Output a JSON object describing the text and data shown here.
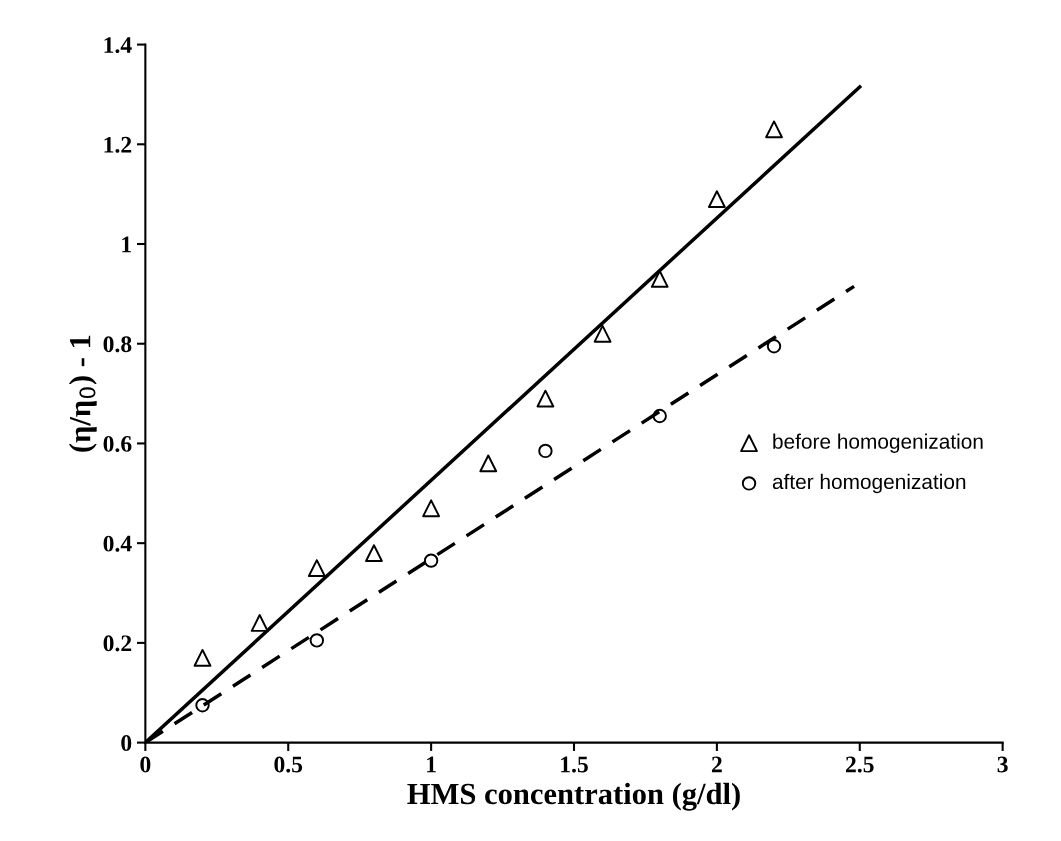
{
  "chart_data": {
    "type": "scatter",
    "xlabel": "HMS concentration (g/dl)",
    "ylabel": "(η/η$_{0}$) - 1",
    "xlim": [
      0,
      3
    ],
    "xticks": [
      0,
      0.5,
      1,
      1.5,
      2,
      2.5,
      3
    ],
    "ylim": [
      0,
      1.4
    ],
    "yticks": [
      0,
      0.2,
      0.4,
      0.6,
      0.8,
      1,
      1.2,
      1.4
    ],
    "grid": false,
    "legend": "right",
    "series": [
      {
        "name": "before homogenization",
        "marker": "triangle",
        "color": "#000000",
        "x": [
          0.2,
          0.4,
          0.6,
          0.8,
          1.0,
          1.2,
          1.4,
          1.6,
          1.8,
          2.0,
          2.2
        ],
        "values": [
          0.17,
          0.24,
          0.35,
          0.38,
          0.47,
          0.56,
          0.69,
          0.82,
          0.93,
          1.09,
          1.23
        ]
      },
      {
        "name": "after homogenization",
        "marker": "circle",
        "color": "#000000",
        "x": [
          0.2,
          0.6,
          1.0,
          1.4,
          1.8,
          2.2
        ],
        "values": [
          0.075,
          0.205,
          0.365,
          0.585,
          0.655,
          0.795
        ]
      },
      {
        "type": "line",
        "line_style": "solid",
        "color": "#000000",
        "x": [
          0,
          2.5
        ],
        "values": [
          0,
          1.315
        ]
      },
      {
        "type": "line",
        "line_style": "dashed",
        "color": "#000000",
        "x": [
          0,
          2.48
        ],
        "values": [
          0,
          0.915
        ]
      }
    ]
  }
}
